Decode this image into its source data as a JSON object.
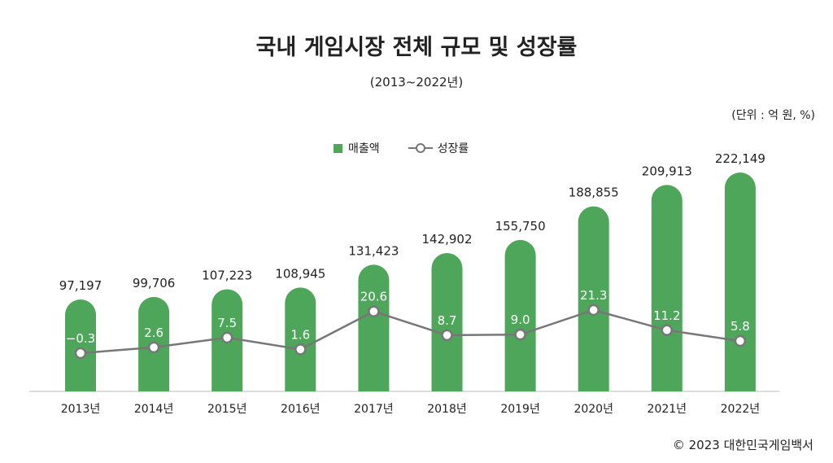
{
  "title": "국내 게임시장 전체 규모 및 성장률",
  "subtitle": "(2013~2022년)",
  "unit": "(단위 : 억 원, %)",
  "source": "© 2023 대한민국게임백서",
  "colors": {
    "bar": "#4ea65a",
    "line": "#777777",
    "marker_fill": "#ffffff",
    "label": "#222222",
    "inner_label": "#ffffff",
    "axis": "#bbbbbb"
  },
  "chart_data": {
    "type": "bar",
    "title": "국내 게임시장 전체 규모 및 성장률",
    "subtitle": "(2013~2022년)",
    "categories": [
      "2013년",
      "2014년",
      "2015년",
      "2016년",
      "2017년",
      "2018년",
      "2019년",
      "2020년",
      "2021년",
      "2022년"
    ],
    "series": [
      {
        "name": "매출액",
        "type": "bar",
        "axis": "left",
        "values": [
          97197,
          99706,
          107223,
          108945,
          131423,
          142902,
          155750,
          188855,
          209913,
          222149
        ],
        "labels": [
          "97,197",
          "99,706",
          "107,223",
          "108,945",
          "131,423",
          "142,902",
          "155,750",
          "188,855",
          "209,913",
          "222,149"
        ]
      },
      {
        "name": "성장률",
        "type": "line",
        "axis": "right",
        "values": [
          -0.3,
          2.6,
          7.5,
          1.6,
          20.6,
          8.7,
          9.0,
          21.3,
          11.2,
          5.8
        ],
        "labels": [
          "−0.3",
          "2.6",
          "7.5",
          "1.6",
          "20.6",
          "8.7",
          "9.0",
          "21.3",
          "11.2",
          "5.8"
        ]
      }
    ],
    "legend": {
      "placement": "top-center",
      "entries": [
        "매출액",
        "성장률"
      ]
    },
    "grid": false
  }
}
